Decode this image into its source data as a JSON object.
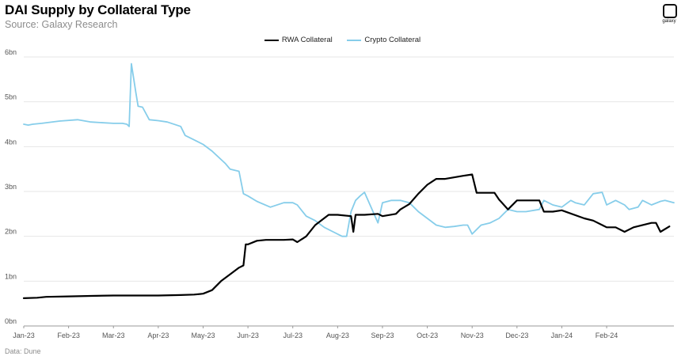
{
  "header": {
    "title": "DAI Supply by Collateral Type",
    "subtitle": "Source: Galaxy Research"
  },
  "logo": {
    "text": "galaxy"
  },
  "footer": {
    "note": "Data: Dune"
  },
  "colors": {
    "rwa": "#000000",
    "crypto": "#86cdea",
    "grid": "#e6e6e6",
    "axis": "#999999",
    "tick": "#555555"
  },
  "chart_data": {
    "type": "line",
    "title": "DAI Supply by Collateral Type",
    "subtitle": "Source: Galaxy Research",
    "xlabel": "",
    "ylabel": "",
    "x_range": [
      0,
      14.5
    ],
    "ylim": [
      0,
      6
    ],
    "y_ticks": [
      0,
      1,
      2,
      3,
      4,
      5,
      6
    ],
    "y_tick_labels": [
      "0bn",
      "1bn",
      "2bn",
      "3bn",
      "4bn",
      "5bn",
      "6bn"
    ],
    "x_tick_labels": [
      "Jan-23",
      "Feb-23",
      "Mar-23",
      "Apr-23",
      "May-23",
      "Jun-23",
      "Jul-23",
      "Aug-23",
      "Sep-23",
      "Oct-23",
      "Nov-23",
      "Dec-23",
      "Jan-24",
      "Feb-24"
    ],
    "grid": true,
    "legend": "top-center",
    "series": [
      {
        "name": "RWA Collateral",
        "color": "#000000",
        "x": [
          0,
          0.3,
          0.5,
          1.0,
          1.5,
          2.0,
          2.5,
          3.0,
          3.5,
          3.8,
          4.0,
          4.2,
          4.4,
          4.6,
          4.8,
          4.9,
          4.95,
          5.0,
          5.2,
          5.4,
          5.8,
          6.0,
          6.1,
          6.3,
          6.5,
          6.8,
          7.0,
          7.3,
          7.35,
          7.4,
          7.6,
          7.9,
          8.0,
          8.3,
          8.4,
          8.6,
          8.8,
          9.0,
          9.2,
          9.4,
          9.8,
          10.0,
          10.1,
          10.5,
          10.6,
          10.8,
          11.0,
          11.5,
          11.6,
          11.8,
          12.0,
          12.5,
          12.7,
          13.0,
          13.2,
          13.4,
          13.6,
          14.0,
          14.1,
          14.2,
          14.4
        ],
        "values": [
          0.62,
          0.63,
          0.65,
          0.66,
          0.67,
          0.68,
          0.68,
          0.68,
          0.69,
          0.7,
          0.72,
          0.8,
          1.0,
          1.15,
          1.3,
          1.35,
          1.82,
          1.82,
          1.9,
          1.92,
          1.92,
          1.93,
          1.87,
          2.0,
          2.25,
          2.48,
          2.48,
          2.45,
          2.1,
          2.48,
          2.48,
          2.5,
          2.45,
          2.5,
          2.6,
          2.72,
          2.95,
          3.15,
          3.28,
          3.28,
          3.35,
          3.38,
          2.97,
          2.97,
          2.82,
          2.6,
          2.8,
          2.8,
          2.55,
          2.55,
          2.58,
          2.4,
          2.35,
          2.2,
          2.2,
          2.1,
          2.2,
          2.3,
          2.3,
          2.1,
          2.22
        ]
      },
      {
        "name": "Crypto Collateral",
        "color": "#86cdea",
        "x": [
          0,
          0.1,
          0.2,
          0.4,
          0.8,
          1.2,
          1.5,
          2.0,
          2.2,
          2.3,
          2.35,
          2.4,
          2.5,
          2.55,
          2.65,
          2.8,
          3.0,
          3.2,
          3.5,
          3.6,
          3.8,
          4.0,
          4.2,
          4.5,
          4.6,
          4.8,
          4.9,
          5.0,
          5.2,
          5.5,
          5.8,
          6.0,
          6.1,
          6.3,
          6.5,
          6.7,
          6.9,
          7.1,
          7.2,
          7.3,
          7.4,
          7.5,
          7.6,
          7.9,
          8.0,
          8.2,
          8.4,
          8.6,
          8.8,
          9.0,
          9.2,
          9.4,
          9.6,
          9.8,
          9.9,
          10.0,
          10.2,
          10.4,
          10.6,
          10.8,
          11.0,
          11.2,
          11.5,
          11.6,
          11.8,
          12.0,
          12.2,
          12.3,
          12.5,
          12.7,
          12.9,
          13.0,
          13.2,
          13.4,
          13.5,
          13.7,
          13.8,
          14.0,
          14.2,
          14.3,
          14.5
        ],
        "values": [
          4.5,
          4.48,
          4.5,
          4.52,
          4.57,
          4.6,
          4.55,
          4.52,
          4.52,
          4.5,
          4.45,
          5.85,
          5.2,
          4.9,
          4.88,
          4.6,
          4.58,
          4.55,
          4.45,
          4.25,
          4.15,
          4.05,
          3.9,
          3.62,
          3.5,
          3.45,
          2.95,
          2.9,
          2.78,
          2.65,
          2.75,
          2.75,
          2.7,
          2.45,
          2.35,
          2.2,
          2.1,
          2.0,
          2.0,
          2.55,
          2.8,
          2.9,
          2.98,
          2.3,
          2.75,
          2.8,
          2.8,
          2.75,
          2.55,
          2.4,
          2.25,
          2.2,
          2.22,
          2.25,
          2.25,
          2.05,
          2.25,
          2.3,
          2.4,
          2.6,
          2.55,
          2.55,
          2.6,
          2.8,
          2.7,
          2.65,
          2.8,
          2.75,
          2.7,
          2.95,
          2.98,
          2.7,
          2.8,
          2.7,
          2.6,
          2.65,
          2.8,
          2.7,
          2.78,
          2.8,
          2.75
        ]
      }
    ]
  }
}
